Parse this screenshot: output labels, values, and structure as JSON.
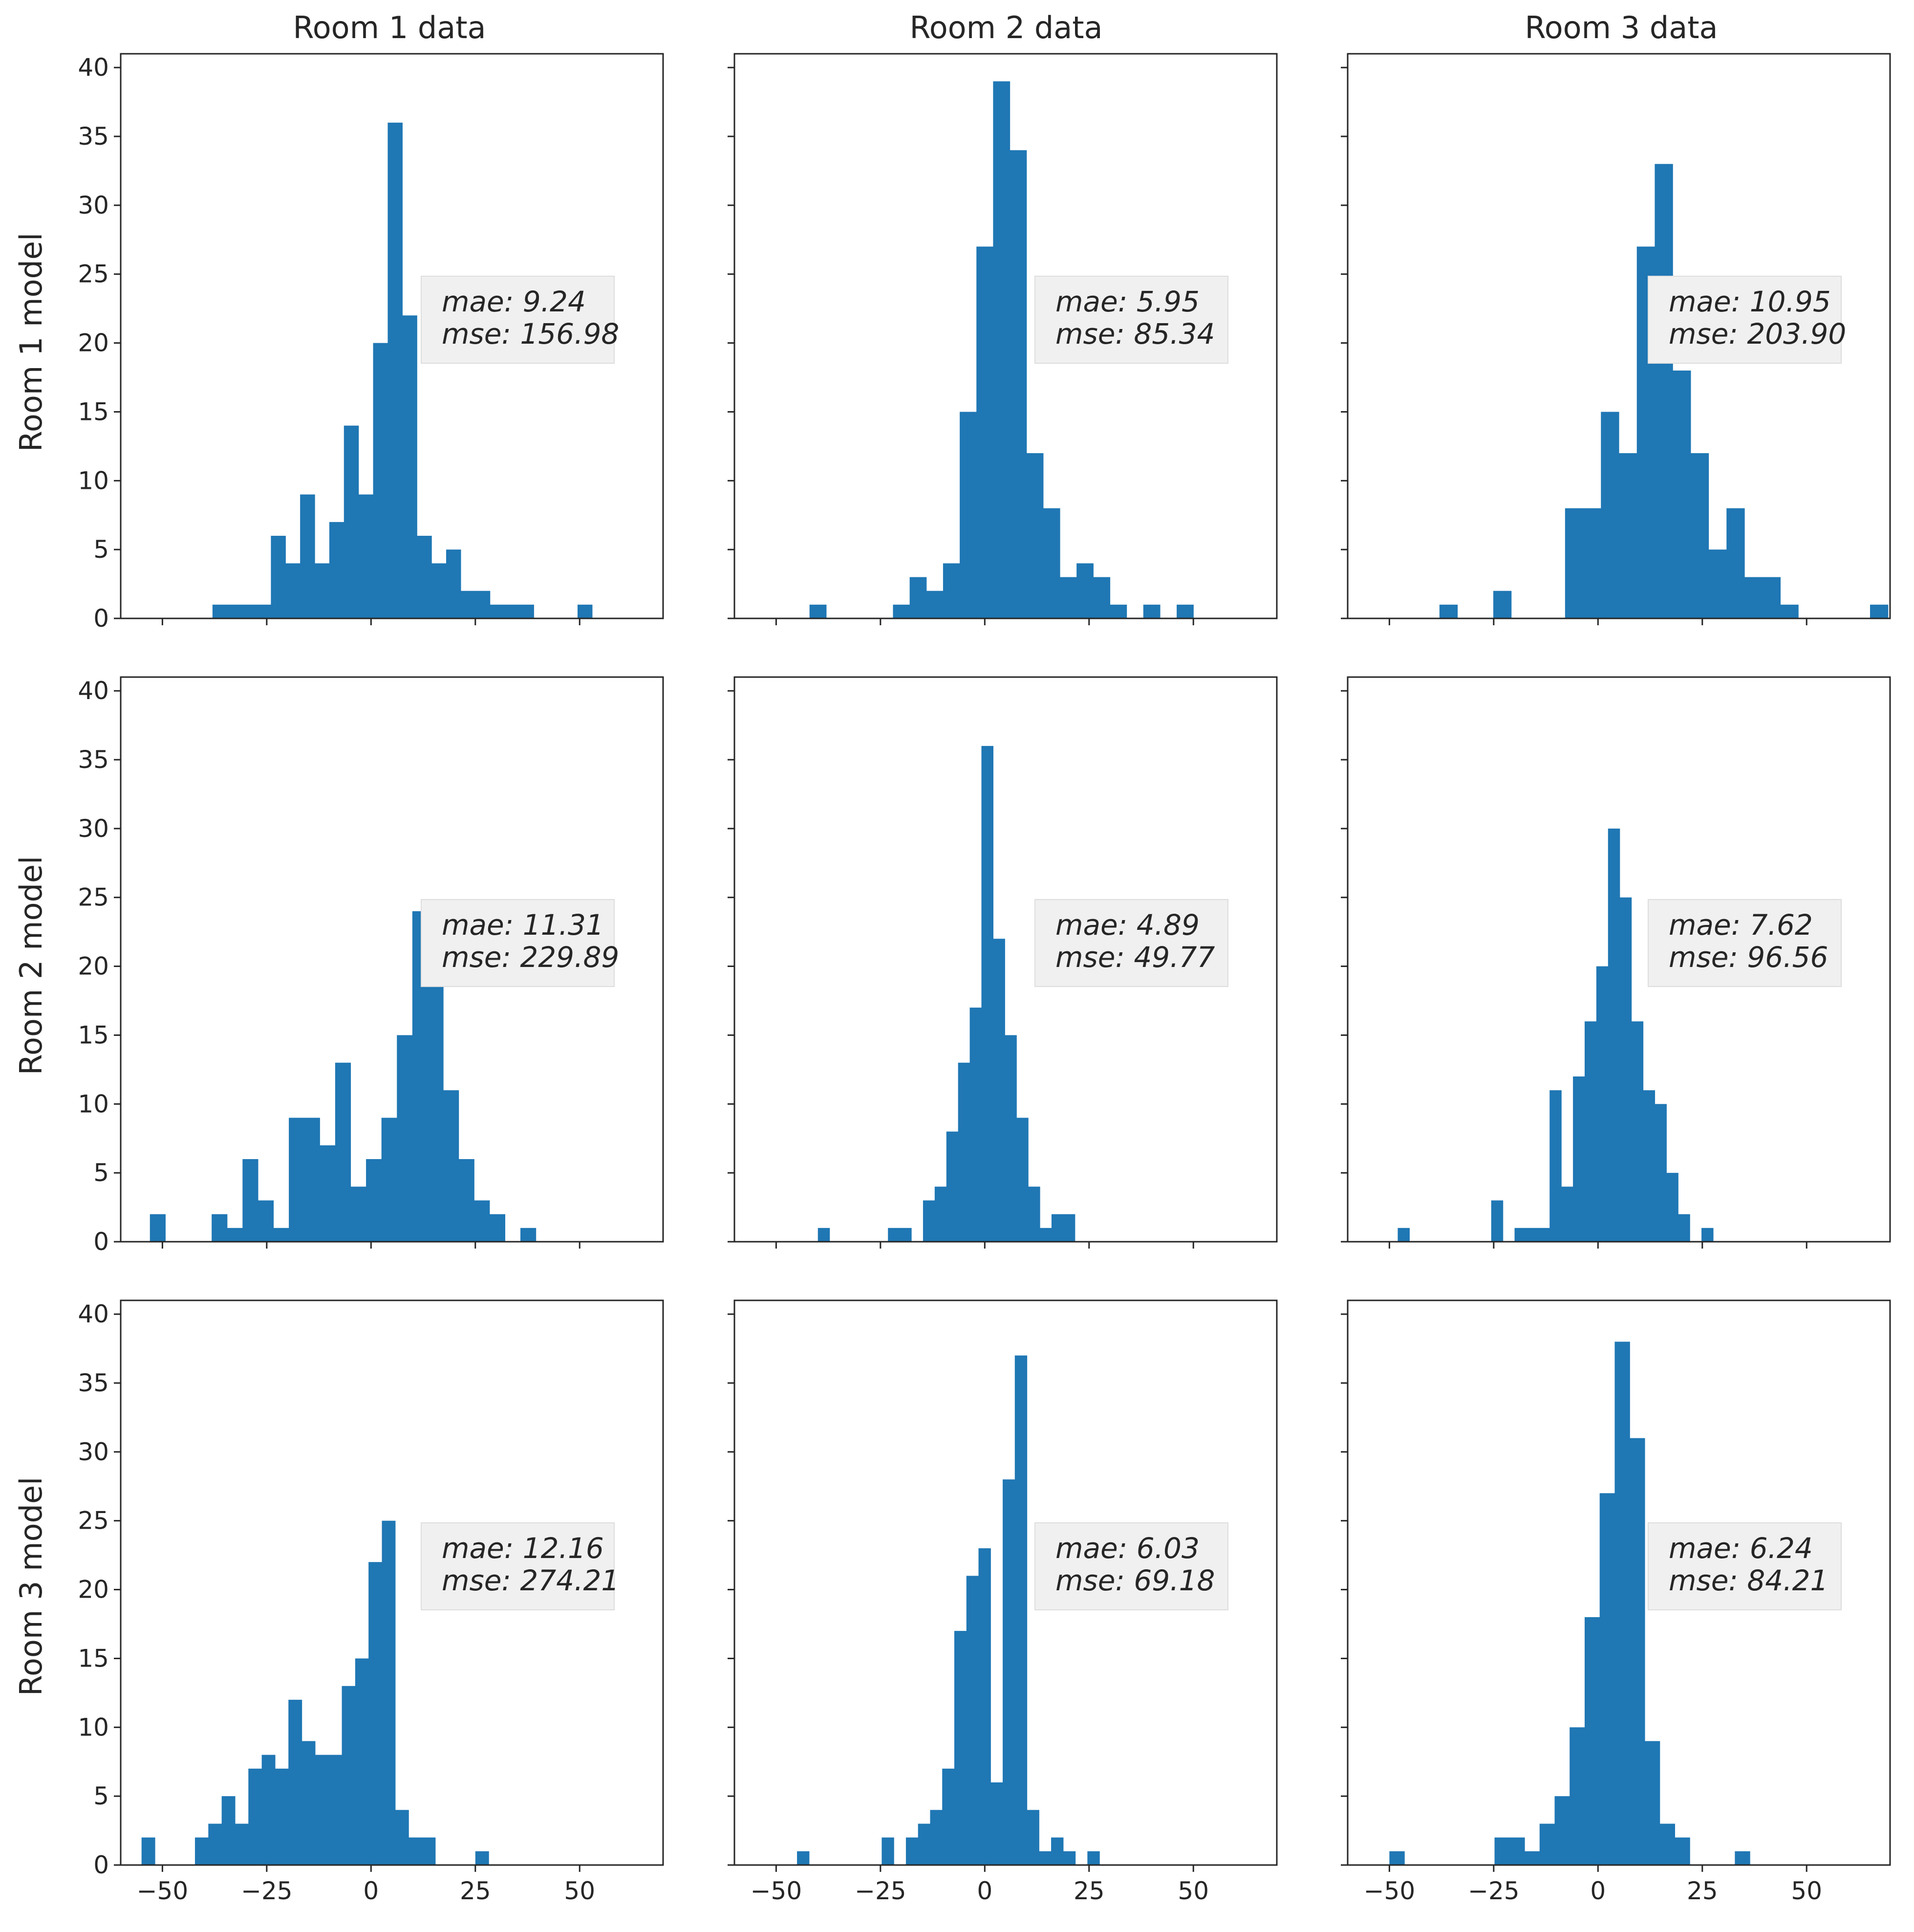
{
  "chart_data": {
    "type": "histogram-grid",
    "bar_color": "#1f77b4",
    "column_titles": [
      "Room 1 data",
      "Room 2 data",
      "Room 3 data"
    ],
    "row_labels": [
      "Room 1 model",
      "Room 2 model",
      "Room 3 model"
    ],
    "xlim": [
      -60,
      70
    ],
    "ylim": [
      0,
      41
    ],
    "x_ticks": [
      -50,
      -25,
      0,
      25,
      50
    ],
    "y_ticks": [
      0,
      5,
      10,
      15,
      20,
      25,
      30,
      35,
      40
    ],
    "x_tick_labels": [
      "−50",
      "−25",
      "0",
      "25",
      "50"
    ],
    "y_tick_labels": [
      "0",
      "5",
      "10",
      "15",
      "20",
      "25",
      "30",
      "35",
      "40"
    ],
    "panels": [
      {
        "row": 0,
        "col": 0,
        "mae_label": "mae:  9.24",
        "mse_label": "mse: 156.98",
        "bin_start": -38,
        "bin_width": 3.5,
        "counts": [
          1,
          1,
          1,
          1,
          6,
          4,
          9,
          4,
          7,
          14,
          9,
          20,
          36,
          22,
          6,
          4,
          5,
          2,
          2,
          1,
          1,
          1,
          0,
          0,
          0,
          1
        ]
      },
      {
        "row": 0,
        "col": 1,
        "mae_label": "mae:  5.95",
        "mse_label": "mse: 85.34",
        "bin_start": -42,
        "bin_width": 4,
        "counts": [
          1,
          0,
          0,
          0,
          0,
          1,
          3,
          2,
          4,
          15,
          27,
          39,
          34,
          12,
          8,
          3,
          4,
          3,
          1,
          0,
          1,
          0,
          1
        ]
      },
      {
        "row": 0,
        "col": 2,
        "mae_label": "mae: 10.95",
        "mse_label": "mse: 203.90",
        "bin_start": -38,
        "bin_width": 4.3,
        "counts": [
          1,
          0,
          0,
          2,
          0,
          0,
          0,
          8,
          8,
          15,
          12,
          27,
          33,
          18,
          12,
          5,
          8,
          3,
          3,
          1,
          0,
          0,
          0,
          0,
          1
        ]
      },
      {
        "row": 1,
        "col": 0,
        "mae_label": "mae: 11.31",
        "mse_label": "mse: 229.89",
        "bin_start": -53,
        "bin_width": 3.7,
        "counts": [
          2,
          0,
          0,
          0,
          2,
          1,
          6,
          3,
          1,
          9,
          9,
          7,
          13,
          4,
          6,
          9,
          15,
          24,
          22,
          11,
          6,
          3,
          2,
          0,
          1
        ]
      },
      {
        "row": 1,
        "col": 1,
        "mae_label": "mae:  4.89",
        "mse_label": "mse: 49.77",
        "bin_start": -40,
        "bin_width": 2.8,
        "counts": [
          1,
          0,
          0,
          0,
          0,
          0,
          1,
          1,
          0,
          3,
          4,
          8,
          13,
          17,
          36,
          22,
          15,
          9,
          4,
          1,
          2,
          2
        ]
      },
      {
        "row": 1,
        "col": 2,
        "mae_label": "mae:  7.62",
        "mse_label": "mse: 96.56",
        "bin_start": -48,
        "bin_width": 2.8,
        "counts": [
          1,
          0,
          0,
          0,
          0,
          0,
          0,
          0,
          3,
          0,
          1,
          1,
          1,
          11,
          4,
          12,
          16,
          20,
          30,
          25,
          16,
          11,
          10,
          5,
          2,
          0,
          1
        ]
      },
      {
        "row": 2,
        "col": 0,
        "mae_label": "mae: 12.16",
        "mse_label": "mse: 274.21",
        "bin_start": -55,
        "bin_width": 3.2,
        "counts": [
          2,
          0,
          0,
          0,
          2,
          3,
          5,
          3,
          7,
          8,
          7,
          12,
          9,
          8,
          8,
          13,
          15,
          22,
          25,
          4,
          2,
          2,
          0,
          0,
          0,
          1
        ]
      },
      {
        "row": 2,
        "col": 1,
        "mae_label": "mae:  6.03",
        "mse_label": "mse: 69.18",
        "bin_start": -45,
        "bin_width": 2.9,
        "counts": [
          1,
          0,
          0,
          0,
          0,
          0,
          0,
          2,
          0,
          2,
          3,
          4,
          7,
          17,
          21,
          23,
          6,
          28,
          37,
          4,
          1,
          2,
          1,
          0,
          1
        ]
      },
      {
        "row": 2,
        "col": 2,
        "mae_label": "mae:  6.24",
        "mse_label": "mse: 84.21",
        "bin_start": -50,
        "bin_width": 3.6,
        "counts": [
          1,
          0,
          0,
          0,
          0,
          0,
          0,
          2,
          2,
          1,
          3,
          5,
          10,
          18,
          27,
          38,
          31,
          9,
          3,
          2,
          0,
          0,
          0,
          1
        ]
      }
    ]
  }
}
